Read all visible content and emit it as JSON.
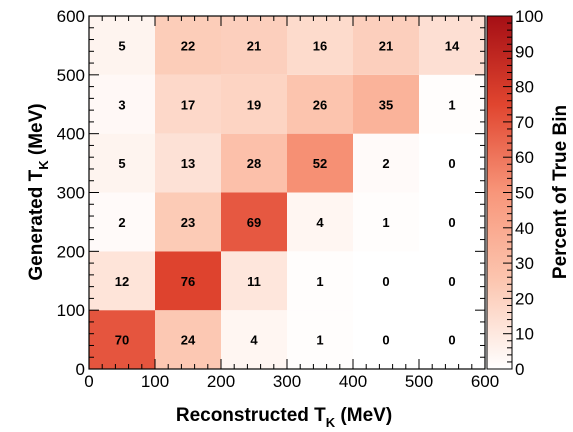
{
  "chart_data": {
    "type": "heatmap",
    "x_bins": [
      0,
      100,
      200,
      300,
      400,
      500,
      600
    ],
    "y_bins": [
      0,
      100,
      200,
      300,
      400,
      500,
      600
    ],
    "xlim": [
      0,
      600
    ],
    "ylim": [
      0,
      600
    ],
    "xticks": [
      "0",
      "100",
      "200",
      "300",
      "400",
      "500",
      "600"
    ],
    "yticks": [
      "0",
      "100",
      "200",
      "300",
      "400",
      "500",
      "600"
    ],
    "xlabel_main": "Reconstructed T",
    "xlabel_sub": "K",
    "xlabel_unit": " (MeV)",
    "ylabel_main": "Generated T",
    "ylabel_sub": "K",
    "ylabel_unit": " (MeV)",
    "colorbar_label": "Percent of True Bin",
    "colorbar_range": [
      0,
      100
    ],
    "colorbar_ticks": [
      "0",
      "10",
      "20",
      "30",
      "40",
      "50",
      "60",
      "70",
      "80",
      "90",
      "100"
    ],
    "colormap": {
      "low": "#ffffff",
      "high": "#a50f15"
    },
    "values": [
      [
        70,
        24,
        4,
        1,
        0,
        0
      ],
      [
        12,
        76,
        11,
        1,
        0,
        0
      ],
      [
        2,
        23,
        69,
        4,
        1,
        0
      ],
      [
        5,
        13,
        28,
        52,
        2,
        0
      ],
      [
        3,
        17,
        19,
        26,
        35,
        1
      ],
      [
        5,
        22,
        21,
        16,
        21,
        14
      ]
    ],
    "grid": false
  }
}
